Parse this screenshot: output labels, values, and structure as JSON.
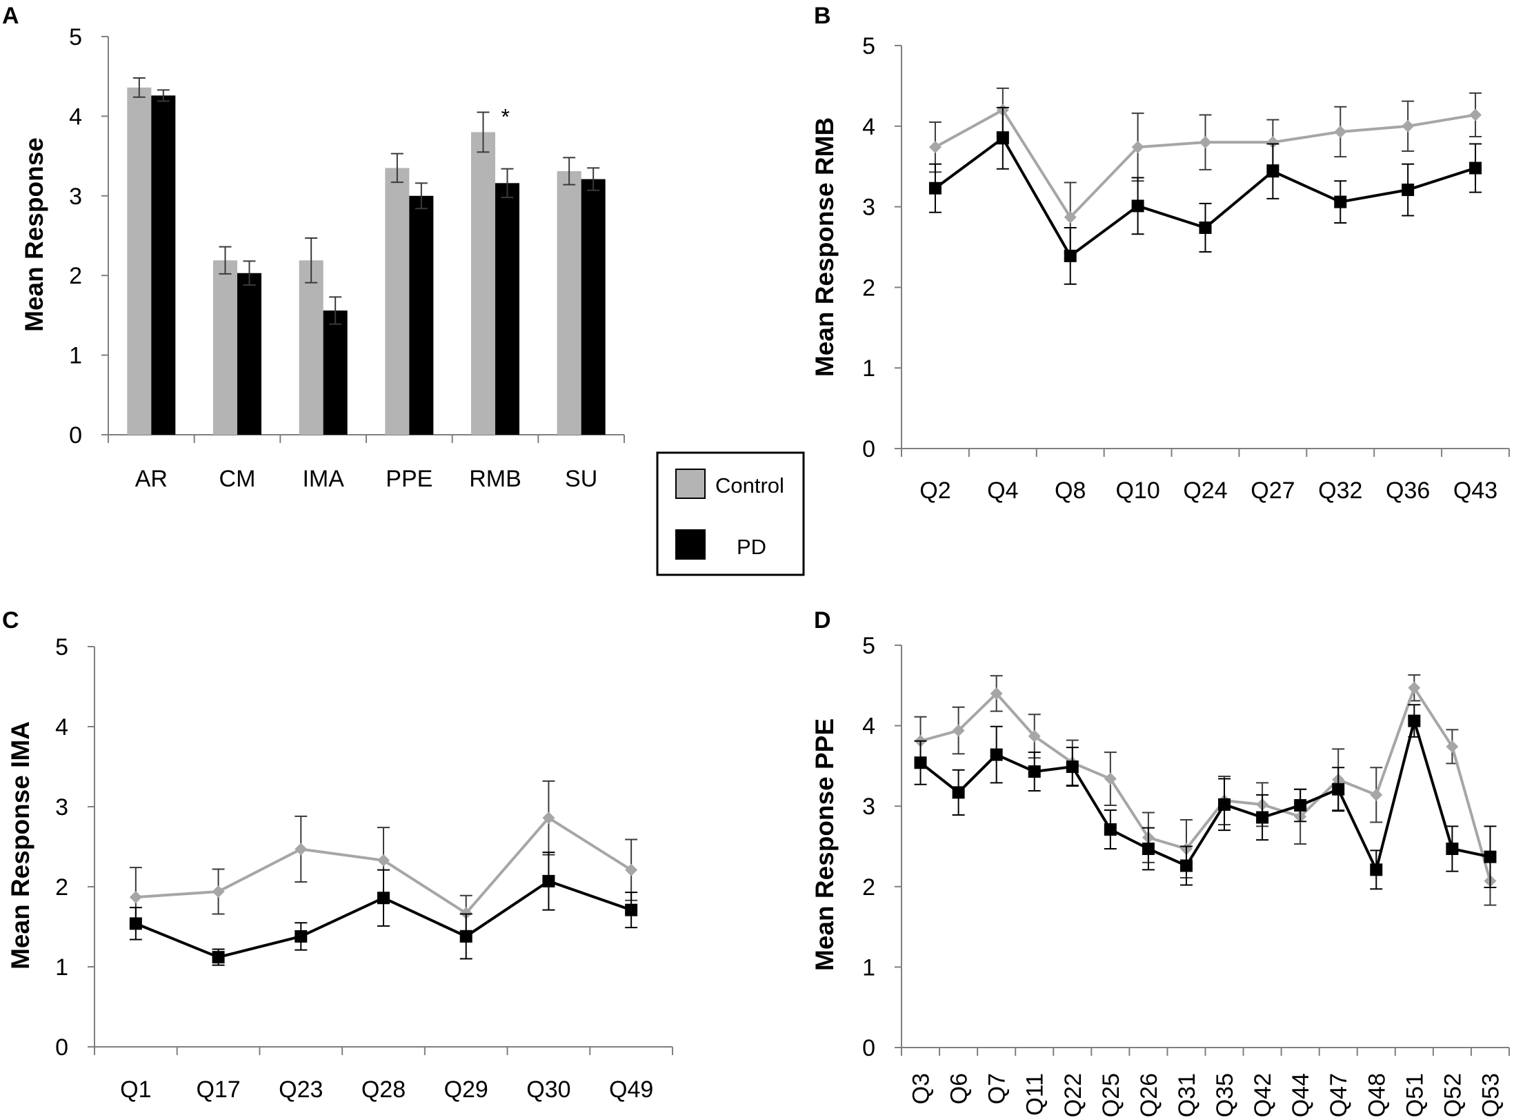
{
  "colors": {
    "control": "#b4b4b4",
    "control_line": "#a6a6a6",
    "pd": "#000000",
    "axis": "#7f7f7f"
  },
  "legend": {
    "control": "Control",
    "pd": "PD"
  },
  "chart_data": [
    {
      "panel": "A",
      "type": "bar",
      "ylabel": "Mean Response",
      "ylim": [
        0,
        5
      ],
      "yticks": [
        "0",
        "1",
        "2",
        "3",
        "4",
        "5"
      ],
      "categories": [
        "AR",
        "CM",
        "IMA",
        "PPE",
        "RMB",
        "SU"
      ],
      "series": [
        {
          "name": "Control",
          "values": [
            4.36,
            2.19,
            2.19,
            3.35,
            3.8,
            3.31
          ],
          "errors": [
            0.12,
            0.17,
            0.28,
            0.18,
            0.25,
            0.17
          ]
        },
        {
          "name": "PD",
          "values": [
            4.26,
            2.03,
            1.56,
            3.0,
            3.16,
            3.21
          ],
          "errors": [
            0.07,
            0.15,
            0.17,
            0.16,
            0.18,
            0.14
          ]
        }
      ],
      "annotations": [
        {
          "category": "RMB",
          "text": "*"
        }
      ]
    },
    {
      "panel": "B",
      "type": "line",
      "ylabel": "Mean Response RMB",
      "ylim": [
        0,
        5
      ],
      "yticks": [
        "0",
        "1",
        "2",
        "3",
        "4",
        "5"
      ],
      "categories": [
        "Q2",
        "Q4",
        "Q8",
        "Q10",
        "Q24",
        "Q27",
        "Q32",
        "Q36",
        "Q43"
      ],
      "series": [
        {
          "name": "Control",
          "values": [
            3.74,
            4.2,
            2.87,
            3.74,
            3.8,
            3.8,
            3.93,
            4.0,
            4.14
          ],
          "errors": [
            0.31,
            0.27,
            0.43,
            0.42,
            0.34,
            0.28,
            0.31,
            0.31,
            0.27
          ]
        },
        {
          "name": "PD",
          "values": [
            3.23,
            3.85,
            2.39,
            3.01,
            2.74,
            3.44,
            3.06,
            3.21,
            3.48
          ],
          "errors": [
            0.3,
            0.38,
            0.35,
            0.35,
            0.3,
            0.34,
            0.26,
            0.32,
            0.3
          ]
        }
      ]
    },
    {
      "panel": "C",
      "type": "line",
      "ylabel": "Mean Response IMA",
      "ylim": [
        0,
        5
      ],
      "yticks": [
        "0",
        "1",
        "2",
        "3",
        "4",
        "5"
      ],
      "categories": [
        "Q1",
        "Q17",
        "Q23",
        "Q28",
        "Q29",
        "Q30",
        "Q49"
      ],
      "series": [
        {
          "name": "Control",
          "values": [
            1.87,
            1.94,
            2.47,
            2.33,
            1.67,
            2.86,
            2.21
          ],
          "errors": [
            0.37,
            0.28,
            0.41,
            0.41,
            0.22,
            0.46,
            0.38
          ]
        },
        {
          "name": "PD",
          "values": [
            1.54,
            1.12,
            1.38,
            1.86,
            1.38,
            2.07,
            1.71
          ],
          "errors": [
            0.2,
            0.1,
            0.17,
            0.35,
            0.28,
            0.36,
            0.22
          ]
        }
      ]
    },
    {
      "panel": "D",
      "type": "line",
      "ylabel": "Mean Response PPE",
      "ylim": [
        0,
        5
      ],
      "yticks": [
        "0",
        "1",
        "2",
        "3",
        "4",
        "5"
      ],
      "categories": [
        "Q3",
        "Q6",
        "Q7",
        "Q11",
        "Q22",
        "Q25",
        "Q26",
        "Q31",
        "Q35",
        "Q42",
        "Q44",
        "Q47",
        "Q48",
        "Q51",
        "Q52",
        "Q53"
      ],
      "series": [
        {
          "name": "Control",
          "values": [
            3.81,
            3.94,
            4.4,
            3.87,
            3.54,
            3.34,
            2.61,
            2.47,
            3.07,
            3.02,
            2.87,
            3.33,
            3.14,
            4.47,
            3.74,
            2.07
          ],
          "errors": [
            0.3,
            0.29,
            0.22,
            0.27,
            0.28,
            0.33,
            0.31,
            0.36,
            0.3,
            0.27,
            0.34,
            0.38,
            0.34,
            0.16,
            0.21,
            0.3
          ]
        },
        {
          "name": "PD",
          "values": [
            3.54,
            3.17,
            3.64,
            3.43,
            3.49,
            2.71,
            2.47,
            2.26,
            3.02,
            2.86,
            3.01,
            3.21,
            2.21,
            4.06,
            2.47,
            2.37
          ],
          "errors": [
            0.27,
            0.28,
            0.35,
            0.24,
            0.24,
            0.24,
            0.26,
            0.24,
            0.32,
            0.28,
            0.2,
            0.27,
            0.24,
            0.2,
            0.28,
            0.38
          ]
        }
      ]
    }
  ]
}
